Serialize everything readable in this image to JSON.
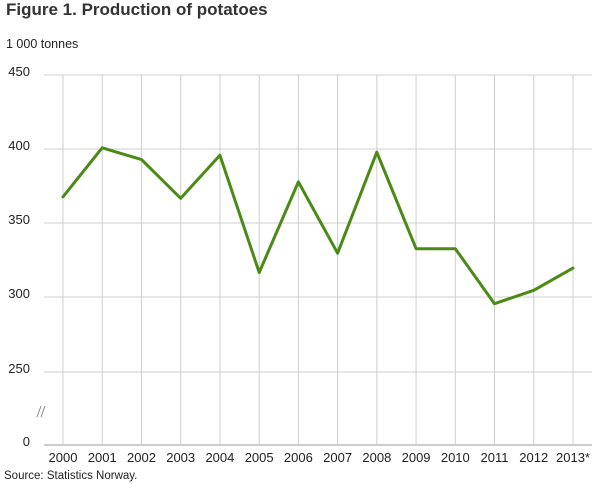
{
  "title": "Figure 1. Production of potatoes",
  "unit_label": "1 000 tonnes",
  "source": "Source: Statistics Norway.",
  "colors": {
    "line": "#4a8a16",
    "grid": "#cfcfcf",
    "axis": "#999999"
  },
  "chart_data": {
    "type": "line",
    "title": "Figure 1. Production of potatoes",
    "ylabel": "1 000 tonnes",
    "xlabel": "",
    "y_axis_break": true,
    "y_ticks": [
      "450",
      "400",
      "350",
      "300",
      "250",
      "0"
    ],
    "categories": [
      "2000",
      "2001",
      "2002",
      "2003",
      "2004",
      "2005",
      "2006",
      "2007",
      "2008",
      "2009",
      "2010",
      "2011",
      "2012",
      "2013*"
    ],
    "series": [
      {
        "values": [
          368,
          401,
          393,
          367,
          396,
          317,
          378,
          330,
          398,
          333,
          333,
          296,
          305,
          320
        ]
      }
    ],
    "grid": true
  }
}
